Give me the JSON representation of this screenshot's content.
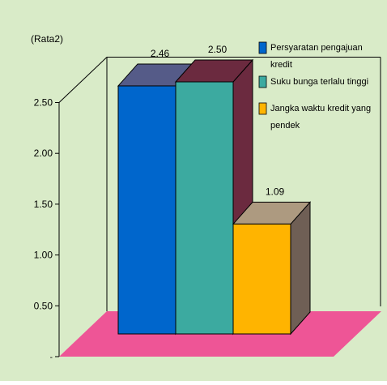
{
  "chart_data": {
    "type": "bar",
    "title": "",
    "xlabel": "",
    "ylabel": "(Rata2)",
    "ylim": [
      0,
      2.5
    ],
    "yticks": [
      "",
      "0.50",
      "1.00",
      "1.50",
      "2.00",
      "2.50"
    ],
    "grid": false,
    "legend_position": "top-right",
    "categories": [
      "Persyaratan pengajuan kredit",
      "Suku bunga terlalu tinggi",
      "Jangka waktu kredit yang pendek"
    ],
    "values": [
      2.46,
      2.5,
      1.09
    ],
    "value_labels": [
      "2.46",
      "2.50",
      "1.09"
    ],
    "legend": [
      {
        "lines": [
          "Persyaratan pengajuan",
          "kredit"
        ],
        "color": "#0066cc"
      },
      {
        "lines": [
          "Suku bunga terlalu tinggi"
        ],
        "color": "#3caaa0"
      },
      {
        "lines": [
          "Jangka waktu kredit yang",
          "pendek"
        ],
        "color": "#ffb400"
      }
    ],
    "colors": {
      "background": "#d9ebc8",
      "floor": "#ee5596",
      "bar_fronts": [
        "#0066cc",
        "#3caaa0",
        "#ffb400"
      ],
      "bar_tops": [
        "#555b88",
        "#6b2a3f",
        "#ad9a80"
      ],
      "bar_sides": [
        "#4a5a7a",
        "#6b2a3f",
        "#6f5f55"
      ]
    }
  }
}
